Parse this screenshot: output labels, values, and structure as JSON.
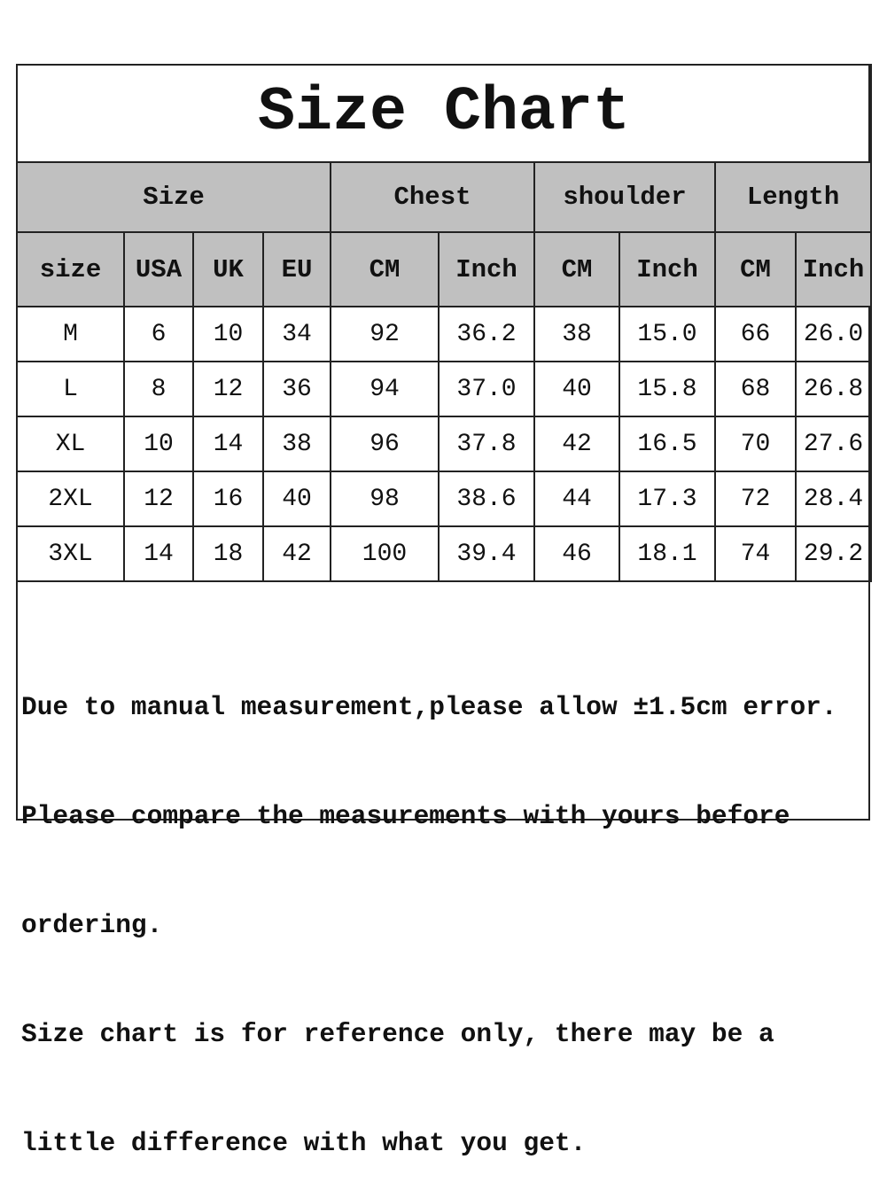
{
  "title": "Size Chart",
  "groups": [
    "Size",
    "Chest",
    "shoulder",
    "Length"
  ],
  "subheaders": [
    "size",
    "USA",
    "UK",
    "EU",
    "CM",
    "Inch",
    "CM",
    "Inch",
    "CM",
    "Inch"
  ],
  "rows": [
    [
      "M",
      "6",
      "10",
      "34",
      "92",
      "36.2",
      "38",
      "15.0",
      "66",
      "26.0"
    ],
    [
      "L",
      "8",
      "12",
      "36",
      "94",
      "37.0",
      "40",
      "15.8",
      "68",
      "26.8"
    ],
    [
      "XL",
      "10",
      "14",
      "38",
      "96",
      "37.8",
      "42",
      "16.5",
      "70",
      "27.6"
    ],
    [
      "2XL",
      "12",
      "16",
      "40",
      "98",
      "38.6",
      "44",
      "17.3",
      "72",
      "28.4"
    ],
    [
      "3XL",
      "14",
      "18",
      "42",
      "100",
      "39.4",
      "46",
      "18.1",
      "74",
      "29.2"
    ]
  ],
  "notes": [
    "Due to manual measurement,please allow ±1.5cm error.",
    "Please compare the measurements with yours before",
    "ordering.",
    "Size chart is for reference only, there may be a",
    "little difference with what you get."
  ],
  "colors": {
    "header_bg": "#c0c0c0",
    "border": "#222222"
  }
}
